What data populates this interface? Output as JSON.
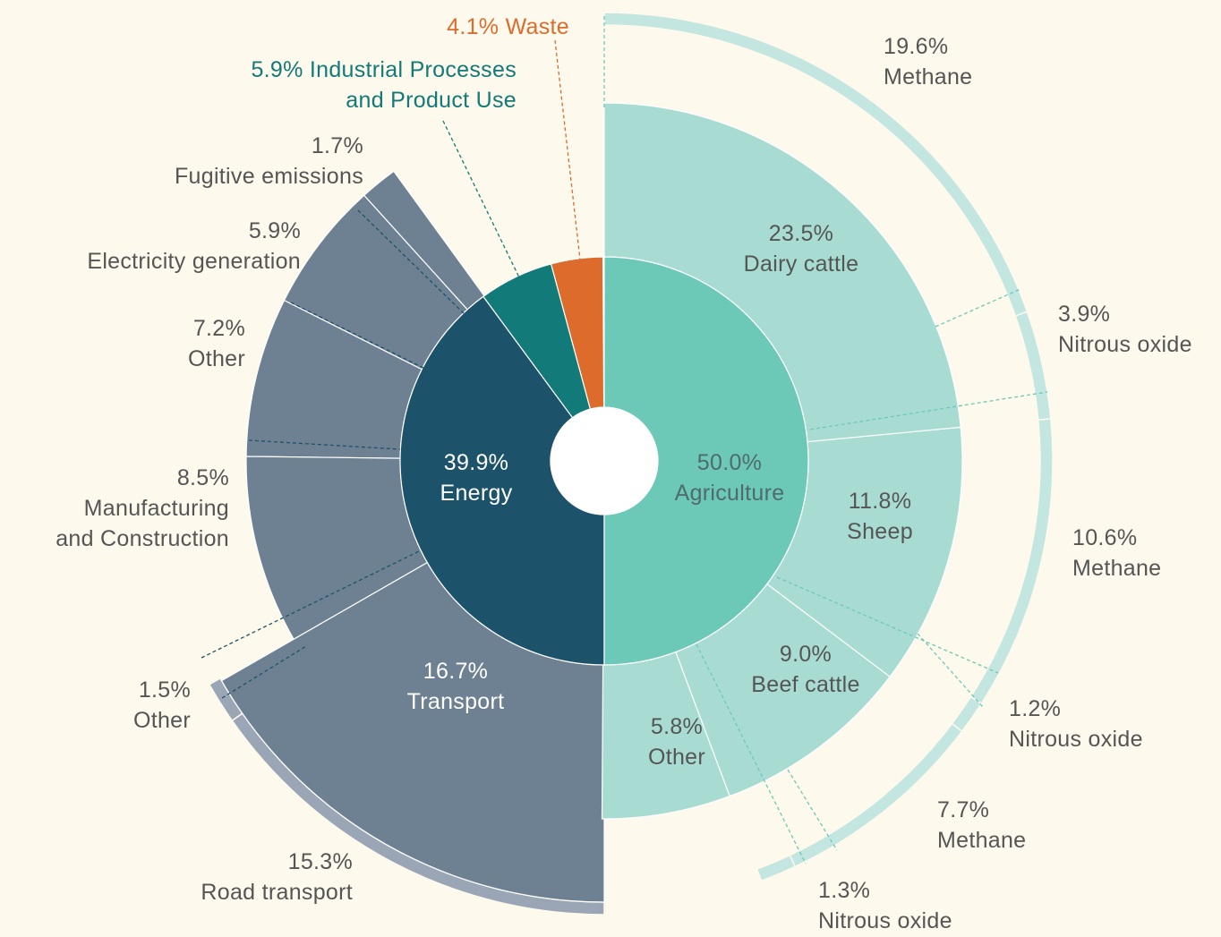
{
  "chart_data": {
    "type": "sunburst",
    "segments": [
      {
        "name": "Agriculture",
        "value": 50.0,
        "value_label": "50.0%",
        "color": "#6dc9b7",
        "children": [
          {
            "name": "Dairy cattle",
            "value": 23.5,
            "value_label": "23.5%",
            "color": "#a8dcd3",
            "children": [
              {
                "name": "Methane",
                "value": 19.6,
                "value_label": "19.6%",
                "color": "#c3e6e0"
              },
              {
                "name": "Nitrous oxide",
                "value": 3.9,
                "value_label": "3.9%",
                "color": "#c3e6e0"
              }
            ]
          },
          {
            "name": "Sheep",
            "value": 11.8,
            "value_label": "11.8%",
            "color": "#a8dcd3",
            "children": [
              {
                "name": "Methane",
                "value": 10.6,
                "value_label": "10.6%",
                "color": "#c3e6e0"
              },
              {
                "name": "Nitrous oxide",
                "value": 1.2,
                "value_label": "1.2%",
                "color": "#c3e6e0"
              }
            ]
          },
          {
            "name": "Beef cattle",
            "value": 9.0,
            "value_label": "9.0%",
            "color": "#a8dcd3",
            "children": [
              {
                "name": "Methane",
                "value": 7.7,
                "value_label": "7.7%",
                "color": "#c3e6e0"
              },
              {
                "name": "Nitrous oxide",
                "value": 1.3,
                "value_label": "1.3%",
                "color": "#c3e6e0"
              }
            ]
          },
          {
            "name": "Other",
            "value": 5.8,
            "value_label": "5.8%",
            "color": "#a8dcd3"
          }
        ]
      },
      {
        "name": "Energy",
        "value": 39.9,
        "value_label": "39.9%",
        "color": "#1d536a",
        "children": [
          {
            "name": "Transport",
            "value": 16.7,
            "value_label": "16.7%",
            "color": "#6e8193",
            "children": [
              {
                "name": "Road transport",
                "value": 15.3,
                "value_label": "15.3%",
                "color": "#9aa6b5"
              },
              {
                "name": "Other",
                "value": 1.5,
                "value_label": "1.5%",
                "color": "#9aa6b5"
              }
            ]
          },
          {
            "name": "Manufacturing\nand Construction",
            "value": 8.5,
            "value_label": "8.5%",
            "color": "#6e8193"
          },
          {
            "name": "Other",
            "value": 7.2,
            "value_label": "7.2%",
            "color": "#6e8193"
          },
          {
            "name": "Electricity generation",
            "value": 5.9,
            "value_label": "5.9%",
            "color": "#6e8193"
          },
          {
            "name": "Fugitive emissions",
            "value": 1.7,
            "value_label": "1.7%",
            "color": "#6e8193"
          }
        ]
      },
      {
        "name": "Industrial Processes\nand Product Use",
        "value": 5.9,
        "value_label": "5.9%",
        "color": "#127a78"
      },
      {
        "name": "Waste",
        "value": 4.1,
        "value_label": "4.1%",
        "color": "#dd6c2c"
      }
    ]
  }
}
